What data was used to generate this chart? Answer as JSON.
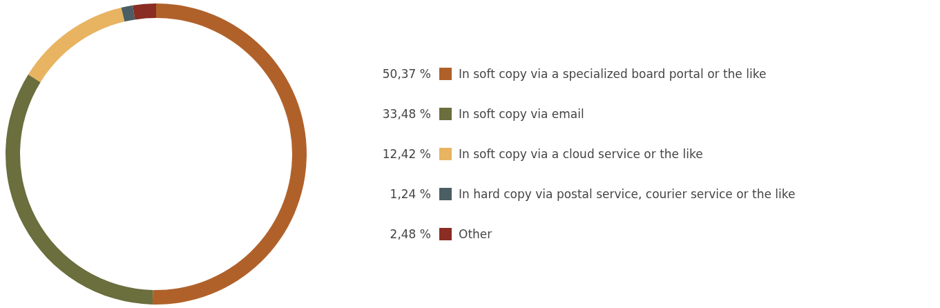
{
  "chart_data": {
    "type": "donut",
    "categories": [
      "In soft copy via a specialized board portal or the like",
      "In soft copy via email",
      "In soft copy via a cloud service or the like",
      "In hard copy via postal service, courier service or the like",
      "Other"
    ],
    "values": [
      50.37,
      33.48,
      12.42,
      1.24,
      2.48
    ],
    "value_labels": [
      "50,37 %",
      "33,48 %",
      "12,42 %",
      "1,24 %",
      "2,48 %"
    ],
    "colors": [
      "#b0612a",
      "#6b6e3d",
      "#e8b462",
      "#4b5e63",
      "#8a2d22"
    ],
    "legend": "right"
  }
}
